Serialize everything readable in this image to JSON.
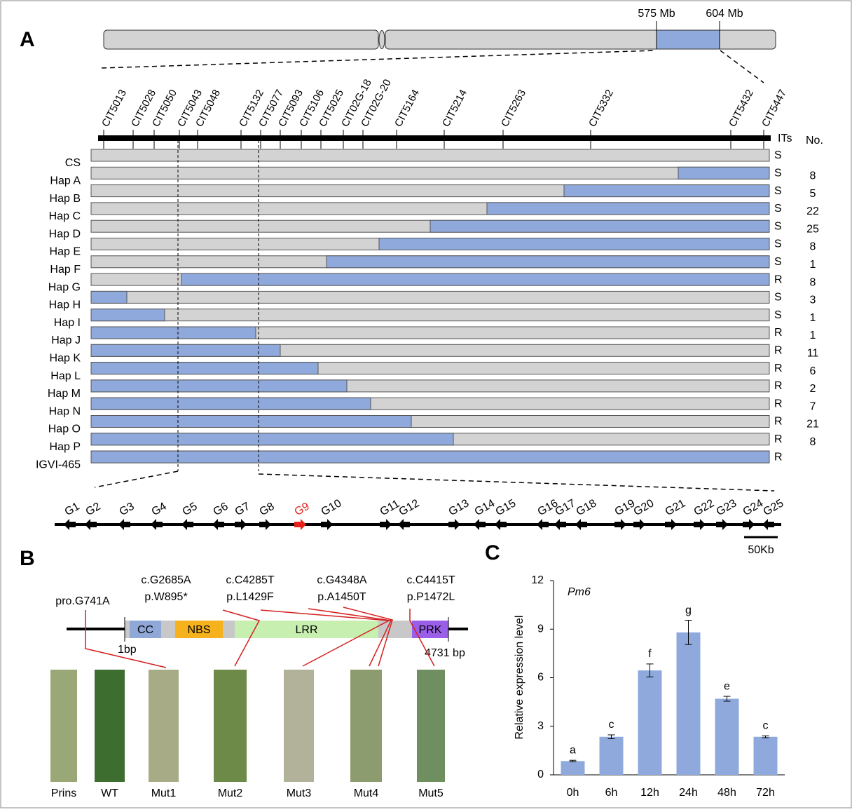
{
  "panel_labels": [
    "A",
    "B",
    "C"
  ],
  "chromosome": {
    "start_label": "575 Mb",
    "end_label": "604 Mb"
  },
  "markers": [
    "CIT5013",
    "CIT5028",
    "CIT5050",
    "CIT5043",
    "CIT5048",
    "CIT5132",
    "CIT5077",
    "CIT5093",
    "CIT5106",
    "CIT5025",
    "CIT02G-18",
    "CIT02G-20",
    "CIT5164",
    "CIT5214",
    "CIT5263",
    "CIT5332",
    "CIT5432",
    "CIT5447"
  ],
  "track_header": {
    "its": "ITs",
    "no": "No."
  },
  "haplotypes": [
    {
      "name": "CS",
      "phenotype": "S"
    },
    {
      "name": "Hap A",
      "phenotype": "S",
      "count": 8
    },
    {
      "name": "Hap B",
      "phenotype": "S",
      "count": 5
    },
    {
      "name": "Hap C",
      "phenotype": "S",
      "count": 22
    },
    {
      "name": "Hap D",
      "phenotype": "S",
      "count": 25
    },
    {
      "name": "Hap E",
      "phenotype": "S",
      "count": 8
    },
    {
      "name": "Hap F",
      "phenotype": "S",
      "count": 1
    },
    {
      "name": "Hap G",
      "phenotype": "R",
      "count": 8
    },
    {
      "name": "Hap H",
      "phenotype": "S",
      "count": 3
    },
    {
      "name": "Hap I",
      "phenotype": "S",
      "count": 1
    },
    {
      "name": "Hap J",
      "phenotype": "R",
      "count": 1
    },
    {
      "name": "Hap K",
      "phenotype": "R",
      "count": 11
    },
    {
      "name": "Hap L",
      "phenotype": "R",
      "count": 6
    },
    {
      "name": "Hap M",
      "phenotype": "R",
      "count": 2
    },
    {
      "name": "Hap N",
      "phenotype": "R",
      "count": 7
    },
    {
      "name": "Hap O",
      "phenotype": "R",
      "count": 21
    },
    {
      "name": "Hap P",
      "phenotype": "R",
      "count": 8
    },
    {
      "name": "IGVI-465",
      "phenotype": "R"
    }
  ],
  "genes": [
    "G1",
    "G2",
    "G3",
    "G4",
    "G5",
    "G6",
    "G7",
    "G8",
    "G9",
    "G10",
    "G11",
    "G12",
    "G13",
    "G14",
    "G15",
    "G16",
    "G17",
    "G18",
    "G19",
    "G20",
    "G21",
    "G22",
    "G23",
    "G24",
    "G25"
  ],
  "scale_bar": "50Kb",
  "gene_model": {
    "domains": [
      "CC",
      "NBS",
      "LRR",
      "PRK"
    ],
    "start_label": "1bp",
    "end_label": "4731 bp",
    "mutations": [
      [
        "pro.G741A"
      ],
      [
        "c.G2685A",
        "p.W895*"
      ],
      [
        "c.C4285T",
        "p.L1429F"
      ],
      [
        "c.G4348A",
        "p.A1450T"
      ],
      [
        "c.C4415T",
        "p.P1472L"
      ]
    ]
  },
  "leaves": [
    "Prins",
    "WT",
    "Mut1",
    "Mut2",
    "Mut3",
    "Mut4",
    "Mut5"
  ],
  "chart_data": {
    "type": "bar",
    "title": "Pm6",
    "y_label": "Relative expression level",
    "categories": [
      "0h",
      "6h",
      "12h",
      "24h",
      "48h",
      "72h"
    ],
    "values": [
      0.85,
      2.35,
      6.45,
      8.8,
      4.7,
      2.35
    ],
    "errors": [
      0.05,
      0.12,
      0.4,
      0.75,
      0.15,
      0.06
    ],
    "annotations": [
      "a",
      "c",
      "f",
      "g",
      "e",
      "c"
    ],
    "color": "#8fa9dc",
    "ylim": [
      0,
      12
    ],
    "yticks": [
      0,
      3,
      6,
      9,
      12
    ]
  }
}
